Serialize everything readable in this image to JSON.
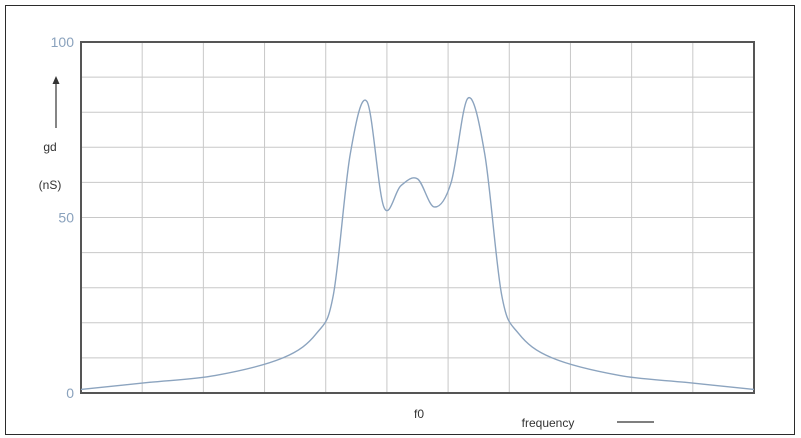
{
  "chart_data": {
    "type": "line",
    "ylabel_lines": [
      "gd",
      "(nS)"
    ],
    "xlabel": "frequency",
    "center_label": "f0",
    "ylim": [
      0,
      100
    ],
    "y_ticks": [
      {
        "value": 0,
        "label": "0"
      },
      {
        "value": 50,
        "label": "50"
      },
      {
        "value": 100,
        "label": "100"
      }
    ],
    "x_gridlines": 11,
    "y_gridlines": 10,
    "grid": true,
    "colors": {
      "line": "#8ca4bf",
      "grid": "#c8c8c8",
      "axis": "#555555",
      "tick_text": "#8aa2bd"
    },
    "series": [
      {
        "x": [
          -5,
          -4,
          -3,
          -2,
          -1.5,
          -1.25,
          -1.0,
          -0.75,
          -0.5,
          -0.25,
          0,
          0.25,
          0.5,
          0.75,
          1.0,
          1.25,
          1.5,
          2,
          3,
          4,
          5
        ],
        "y": [
          1,
          3,
          5,
          10,
          17,
          28,
          68,
          83,
          53,
          59,
          61,
          53,
          60,
          84,
          68,
          28,
          17,
          10,
          5,
          3,
          1
        ]
      }
    ]
  }
}
